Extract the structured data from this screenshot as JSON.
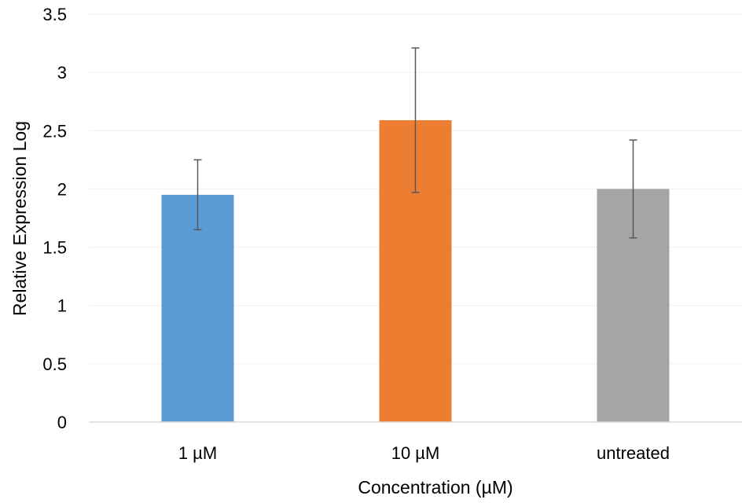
{
  "chart_data": {
    "type": "bar",
    "title": "",
    "xlabel": "Concentration (µM)",
    "ylabel": "Relative Expression Log",
    "categories": [
      "1 µM",
      "10 µM",
      "untreated"
    ],
    "values": [
      1.95,
      2.59,
      2.0
    ],
    "error": [
      0.3,
      0.62,
      0.42
    ],
    "colors": [
      "#5b9bd5",
      "#ed7d31",
      "#a5a5a5"
    ],
    "ylim": [
      0,
      3.5
    ],
    "yticks": [
      "0",
      "0.5",
      "1",
      "1.5",
      "2",
      "2.5",
      "3",
      "3.5"
    ],
    "grid": true
  }
}
